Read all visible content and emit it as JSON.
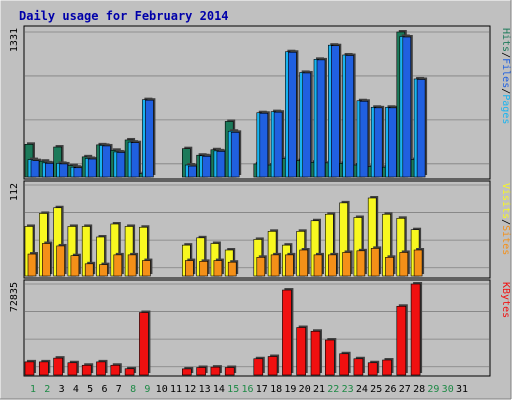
{
  "colors": {
    "background": "#c0c0c0",
    "frame_bg": "#dedede",
    "title": "#0000aa",
    "pages": "#1c7a5a",
    "hits": "#18b4f0",
    "files": "#2060e0",
    "visits": "#f8f820",
    "sites": "#f49018",
    "kbytes": "#f01010",
    "weekday_label": "#000000",
    "weekend_label": "#1e8a46"
  },
  "chart_data": {
    "type": "bar",
    "title": "Daily usage for February 2014",
    "categories": [
      "1",
      "2",
      "3",
      "4",
      "5",
      "6",
      "7",
      "8",
      "9",
      "10",
      "11",
      "12",
      "13",
      "14",
      "15",
      "16",
      "17",
      "18",
      "19",
      "20",
      "21",
      "22",
      "23",
      "24",
      "25",
      "26",
      "27",
      "28",
      "29",
      "30",
      "31"
    ],
    "weekend_days": [
      "1",
      "2",
      "8",
      "9",
      "15",
      "16",
      "22",
      "23",
      "29",
      "30"
    ],
    "panels": [
      {
        "id": "hits",
        "ymax": 1331,
        "ymax_label": "1331",
        "axis_label_parts": [
          "Pages",
          "/",
          "Files",
          "/",
          "Hits"
        ],
        "series": [
          {
            "name": "Pages",
            "values": [
              300,
              145,
              275,
              105,
              185,
              295,
              245,
              340,
              30,
              0,
              0,
              260,
              200,
              250,
              510,
              0,
              120,
              110,
              170,
              150,
              135,
              130,
              125,
              110,
              95,
              90,
              1331,
              160,
              0,
              0,
              0
            ]
          },
          {
            "name": "Hits",
            "values": [
              160,
              130,
              125,
              90,
              170,
              290,
              230,
              320,
              710,
              0,
              0,
              110,
              195,
              240,
              420,
              0,
              590,
              600,
              1150,
              960,
              1080,
              1210,
              1120,
              700,
              640,
              640,
              1290,
              900,
              0,
              0,
              0
            ]
          },
          {
            "name": "Files",
            "values": [
              150,
              125,
              120,
              85,
              165,
              285,
              225,
              315,
              705,
              0,
              0,
              100,
              190,
              235,
              410,
              0,
              585,
              595,
              1145,
              955,
              1075,
              1205,
              1115,
              695,
              635,
              635,
              1285,
              895,
              0,
              0,
              0
            ]
          }
        ]
      },
      {
        "id": "visits",
        "ymax": 112,
        "ymax_label": "112",
        "axis_label_parts": [
          "Sites",
          "/",
          "Visits"
        ],
        "series": [
          {
            "name": "Visits",
            "values": [
              61,
              77,
              84,
              61,
              61,
              48,
              64,
              61,
              60,
              0,
              0,
              38,
              47,
              40,
              32,
              0,
              45,
              55,
              38,
              55,
              68,
              76,
              90,
              72,
              96,
              76,
              71,
              57,
              0,
              0,
              0
            ]
          },
          {
            "name": "Sites",
            "values": [
              27,
              40,
              37,
              25,
              15,
              14,
              26,
              26,
              19,
              0,
              0,
              19,
              18,
              19,
              17,
              0,
              23,
              26,
              26,
              32,
              26,
              26,
              29,
              31,
              34,
              23,
              29,
              32,
              0,
              0,
              0
            ]
          }
        ]
      },
      {
        "id": "kbytes",
        "ymax": 72835,
        "ymax_label": "72835",
        "axis_label_parts": [
          "KBytes"
        ],
        "series": [
          {
            "name": "KBytes",
            "values": [
              10500,
              10500,
              13500,
              9800,
              7800,
              10500,
              7800,
              5000,
              50000,
              0,
              0,
              4900,
              6000,
              6300,
              6000,
              0,
              13000,
              14800,
              68000,
              38000,
              35000,
              28000,
              17000,
              13000,
              9800,
              12000,
              55000,
              72835,
              0,
              0,
              0
            ]
          }
        ]
      }
    ]
  }
}
